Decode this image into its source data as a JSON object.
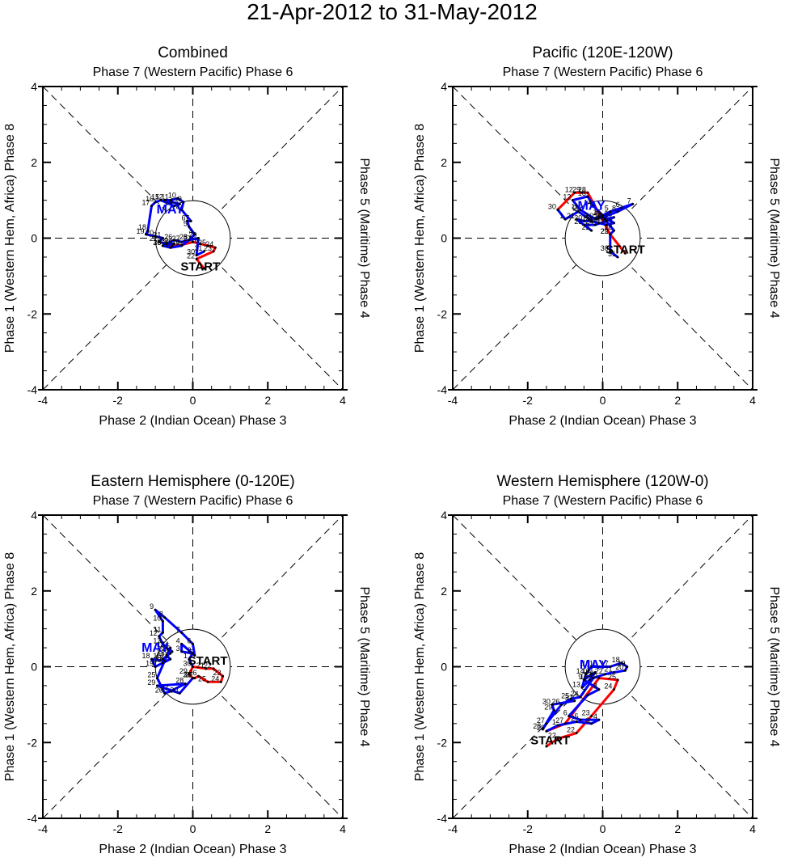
{
  "page_title": "21-Apr-2012 to 31-May-2012",
  "chart_data": [
    {
      "type": "line",
      "title": "Combined",
      "top_label": "Phase 7 (Western Pacific) Phase 6",
      "bottom_label": "Phase 2 (Indian Ocean) Phase 3",
      "left_label": "Phase 1 (Western Hem, Africa) Phase 8",
      "right_label": "Phase 5 (Maritime) Phase 4",
      "xlim": [
        -4,
        4
      ],
      "ylim": [
        -4,
        4
      ],
      "xticks": [
        "-4",
        "-2",
        "0",
        "2",
        "4"
      ],
      "yticks": [
        "-4",
        "-2",
        "0",
        "2",
        "4"
      ],
      "unit_circle_radius": 1,
      "start_label": "START",
      "start_pos": [
        0.2,
        -0.85
      ],
      "month_label": "MAY",
      "month_label_pos": [
        -0.6,
        0.65
      ],
      "series": [
        {
          "name": "April",
          "color": "#ff0000",
          "points": [
            [
              0.3,
              -0.8,
              ""
            ],
            [
              0.1,
              -0.55,
              "22"
            ],
            [
              0.55,
              -0.35,
              "23"
            ],
            [
              0.6,
              -0.25,
              "24"
            ],
            [
              0.4,
              -0.2,
              "25"
            ],
            [
              0.2,
              -0.15,
              "26"
            ],
            [
              0.0,
              -0.1,
              "27"
            ],
            [
              -0.3,
              -0.18,
              "28"
            ],
            [
              -0.55,
              -0.2,
              "29"
            ],
            [
              -0.8,
              -0.2,
              "30"
            ]
          ]
        },
        {
          "name": "May",
          "color": "#0000ff",
          "points": [
            [
              -0.8,
              -0.2,
              ""
            ],
            [
              -0.6,
              -0.25,
              "1"
            ],
            [
              -0.3,
              -0.2,
              "2"
            ],
            [
              -0.1,
              -0.05,
              "3"
            ],
            [
              0.05,
              0.1,
              "4"
            ],
            [
              -0.1,
              0.3,
              "5"
            ],
            [
              -0.15,
              0.45,
              "6"
            ],
            [
              -0.05,
              0.45,
              "7"
            ],
            [
              -0.3,
              0.75,
              "8"
            ],
            [
              -0.25,
              0.95,
              "9"
            ],
            [
              -0.4,
              1.05,
              "10"
            ],
            [
              -0.6,
              1.0,
              "11"
            ],
            [
              -0.75,
              1.0,
              "12"
            ],
            [
              -0.35,
              0.9,
              "13"
            ],
            [
              -0.5,
              0.85,
              "14"
            ],
            [
              -0.85,
              1.0,
              "15"
            ],
            [
              -1.0,
              0.95,
              "16"
            ],
            [
              -1.1,
              0.85,
              "17"
            ],
            [
              -1.2,
              0.2,
              "18"
            ],
            [
              -1.25,
              0.1,
              "19"
            ],
            [
              -1.0,
              0.05,
              "20"
            ],
            [
              -0.8,
              0.0,
              "21"
            ],
            [
              -0.9,
              -0.1,
              "22"
            ],
            [
              -0.7,
              -0.15,
              "23"
            ],
            [
              -0.5,
              -0.15,
              "24"
            ],
            [
              -0.8,
              -0.2,
              "25"
            ],
            [
              -0.5,
              -0.05,
              "26"
            ],
            [
              -0.3,
              -0.1,
              "27"
            ],
            [
              -0.1,
              -0.05,
              "28"
            ],
            [
              0.15,
              0.0,
              "29"
            ],
            [
              0.1,
              -0.45,
              "30"
            ],
            [
              0.3,
              -0.35,
              "31"
            ]
          ]
        }
      ]
    },
    {
      "type": "line",
      "title": "Pacific (120E-120W)",
      "top_label": "Phase 7 (Western Pacific) Phase 6",
      "bottom_label": "Phase 2 (Indian Ocean) Phase 3",
      "left_label": "Phase 1 (Western Hem, Africa) Phase 8",
      "right_label": "Phase 5 (Maritime) Phase 4",
      "xlim": [
        -4,
        4
      ],
      "ylim": [
        -4,
        4
      ],
      "xticks": [
        "-4",
        "-2",
        "0",
        "2",
        "4"
      ],
      "yticks": [
        "-4",
        "-2",
        "0",
        "2",
        "4"
      ],
      "unit_circle_radius": 1,
      "start_label": "START",
      "start_pos": [
        0.6,
        -0.4
      ],
      "month_label": "MAY",
      "month_label_pos": [
        -0.3,
        0.75
      ],
      "series": [
        {
          "name": "April",
          "color": "#ff0000",
          "points": [
            [
              0.6,
              -0.4,
              ""
            ],
            [
              0.2,
              0.1,
              "22"
            ],
            [
              -0.4,
              1.2,
              "28"
            ],
            [
              -0.55,
              1.2,
              "29"
            ],
            [
              -0.75,
              1.2,
              "12"
            ],
            [
              -1.2,
              0.75,
              "30"
            ]
          ]
        },
        {
          "name": "May",
          "color": "#0000ff",
          "points": [
            [
              -1.2,
              0.75,
              ""
            ],
            [
              -1.0,
              0.5,
              "1"
            ],
            [
              -0.65,
              0.7,
              "2"
            ],
            [
              -0.35,
              0.5,
              "3"
            ],
            [
              -0.1,
              0.55,
              "4"
            ],
            [
              0.2,
              0.7,
              "5"
            ],
            [
              0.5,
              0.8,
              "6"
            ],
            [
              0.8,
              0.9,
              "7"
            ],
            [
              0.4,
              0.7,
              "8"
            ],
            [
              0.0,
              0.55,
              "9"
            ],
            [
              -0.2,
              0.5,
              "10"
            ],
            [
              -0.6,
              0.75,
              "11"
            ],
            [
              -0.8,
              1.0,
              "12"
            ],
            [
              -0.4,
              1.1,
              "13"
            ],
            [
              -0.25,
              0.85,
              "14"
            ],
            [
              0.0,
              0.6,
              "15"
            ],
            [
              0.3,
              0.4,
              "16"
            ],
            [
              0.1,
              0.35,
              "17"
            ],
            [
              -0.1,
              0.4,
              "18"
            ],
            [
              -0.3,
              0.45,
              "19"
            ],
            [
              -0.5,
              0.45,
              "20"
            ],
            [
              -0.7,
              0.5,
              "21"
            ],
            [
              -0.3,
              0.2,
              "22"
            ],
            [
              -0.5,
              0.35,
              "23"
            ],
            [
              -0.2,
              0.35,
              "24"
            ],
            [
              0.1,
              0.45,
              "25"
            ],
            [
              0.3,
              0.55,
              "26"
            ],
            [
              0.05,
              0.5,
              "27"
            ],
            [
              0.3,
              0.2,
              "28"
            ],
            [
              0.2,
              0.1,
              "29"
            ],
            [
              0.2,
              -0.35,
              "30"
            ],
            [
              0.4,
              -0.5,
              "31"
            ]
          ]
        }
      ]
    },
    {
      "type": "line",
      "title": "Eastern Hemisphere (0-120E)",
      "top_label": "Phase 7 (Western Pacific) Phase 6",
      "bottom_label": "Phase 2 (Indian Ocean) Phase 3",
      "left_label": "Phase 1 (Western Hem, Africa) Phase 8",
      "right_label": "Phase 5 (Maritime) Phase 4",
      "xlim": [
        -4,
        4
      ],
      "ylim": [
        -4,
        4
      ],
      "xticks": [
        "-4",
        "-2",
        "0",
        "2",
        "4"
      ],
      "yticks": [
        "-4",
        "-2",
        "0",
        "2",
        "4"
      ],
      "unit_circle_radius": 1,
      "start_label": "START",
      "start_pos": [
        0.4,
        0.05
      ],
      "month_label": "MAY",
      "month_label_pos": [
        -1.0,
        0.4
      ],
      "series": [
        {
          "name": "April",
          "color": "#ff0000",
          "points": [
            [
              0.0,
              0.0,
              ""
            ],
            [
              0.35,
              -0.05,
              "21"
            ],
            [
              0.55,
              -0.05,
              "22"
            ],
            [
              0.8,
              -0.25,
              "23"
            ],
            [
              0.75,
              -0.4,
              "24"
            ],
            [
              0.4,
              -0.4,
              "25"
            ],
            [
              0.15,
              -0.25,
              "26"
            ],
            [
              0.05,
              -0.3,
              "27"
            ],
            [
              0.0,
              -0.3,
              "28"
            ],
            [
              -0.1,
              -0.2,
              "29"
            ],
            [
              0.0,
              0.0,
              "30"
            ]
          ]
        },
        {
          "name": "May",
          "color": "#0000ff",
          "points": [
            [
              0.0,
              0.0,
              ""
            ],
            [
              -0.1,
              0.2,
              "1"
            ],
            [
              0.0,
              0.35,
              "2"
            ],
            [
              -0.3,
              0.4,
              "3"
            ],
            [
              -0.3,
              0.6,
              "4"
            ],
            [
              0.05,
              0.3,
              "5"
            ],
            [
              0.0,
              0.6,
              "6"
            ],
            [
              -0.3,
              0.9,
              "7"
            ],
            [
              -0.75,
              1.3,
              "8"
            ],
            [
              -1.0,
              1.5,
              "9"
            ],
            [
              -0.8,
              1.2,
              "10"
            ],
            [
              -0.8,
              0.9,
              "11"
            ],
            [
              -0.9,
              0.8,
              "12"
            ],
            [
              -0.8,
              0.6,
              "13"
            ],
            [
              -0.7,
              0.5,
              "14"
            ],
            [
              -0.55,
              0.4,
              "15"
            ],
            [
              -0.8,
              0.2,
              "16"
            ],
            [
              -0.75,
              0.15,
              "17"
            ],
            [
              -1.1,
              0.2,
              "18"
            ],
            [
              -1.0,
              0.0,
              "19"
            ],
            [
              -0.8,
              0.1,
              "20"
            ],
            [
              -0.6,
              0.2,
              "21"
            ],
            [
              -0.7,
              0.3,
              "22"
            ],
            [
              -0.6,
              0.35,
              "23"
            ],
            [
              -0.6,
              0.5,
              "24"
            ],
            [
              -0.95,
              -0.3,
              "25"
            ],
            [
              -0.75,
              -0.7,
              "26"
            ],
            [
              -0.6,
              -0.65,
              "27"
            ],
            [
              -0.2,
              -0.45,
              "28"
            ],
            [
              -0.95,
              -0.5,
              "29"
            ],
            [
              -0.35,
              -0.7,
              "30"
            ],
            [
              0.0,
              -0.3,
              "31"
            ]
          ]
        }
      ]
    },
    {
      "type": "line",
      "title": "Western Hemisphere (120W-0)",
      "top_label": "Phase 7 (Western Pacific) Phase 6",
      "bottom_label": "Phase 2 (Indian Ocean) Phase 3",
      "left_label": "Phase 1 (Western Hem, Africa) Phase 8",
      "right_label": "Phase 5 (Maritime) Phase 4",
      "xlim": [
        -4,
        4
      ],
      "ylim": [
        -4,
        4
      ],
      "xticks": [
        "-4",
        "-2",
        "0",
        "2",
        "4"
      ],
      "yticks": [
        "-4",
        "-2",
        "0",
        "2",
        "4"
      ],
      "unit_circle_radius": 1,
      "start_label": "START",
      "start_pos": [
        -1.4,
        -2.05
      ],
      "month_label": "MAY",
      "month_label_pos": [
        -0.25,
        -0.05
      ],
      "series": [
        {
          "name": "April",
          "color": "#ff0000",
          "points": [
            [
              -1.5,
              -2.1,
              ""
            ],
            [
              -1.2,
              -1.9,
              "22"
            ],
            [
              -0.7,
              -1.75,
              "22"
            ],
            [
              -0.3,
              -1.3,
              "23"
            ],
            [
              0.3,
              -0.6,
              "24"
            ],
            [
              0.4,
              -0.35,
              "25"
            ],
            [
              -0.1,
              -0.3,
              "26"
            ],
            [
              -1.0,
              -1.5,
              "27"
            ],
            [
              -1.5,
              -1.7,
              "28"
            ]
          ]
        },
        {
          "name": "May",
          "color": "#0000ff",
          "points": [
            [
              -1.5,
              -1.7,
              ""
            ],
            [
              -1.2,
              -1.55,
              "1"
            ],
            [
              -0.7,
              -1.45,
              "2"
            ],
            [
              -0.3,
              -1.5,
              "3"
            ],
            [
              -0.1,
              -1.4,
              "4"
            ],
            [
              -0.6,
              -1.4,
              "5"
            ],
            [
              -0.9,
              -1.3,
              "6"
            ],
            [
              -0.4,
              -0.75,
              "7"
            ],
            [
              -0.1,
              -0.6,
              "8"
            ],
            [
              -0.5,
              -0.35,
              "9"
            ],
            [
              -0.3,
              -0.2,
              "10"
            ],
            [
              -0.2,
              -0.15,
              "11"
            ],
            [
              -0.35,
              -0.35,
              "12"
            ],
            [
              -0.55,
              -0.55,
              "13"
            ],
            [
              -0.45,
              -0.2,
              "14"
            ],
            [
              -0.3,
              0.0,
              "15"
            ],
            [
              -0.1,
              0.0,
              "16"
            ],
            [
              0.2,
              0.0,
              "17"
            ],
            [
              0.5,
              0.1,
              "18"
            ],
            [
              0.65,
              0.0,
              "19"
            ],
            [
              0.6,
              -0.1,
              "20"
            ],
            [
              0.3,
              -0.15,
              "21"
            ],
            [
              0.05,
              -0.2,
              "22"
            ],
            [
              -0.25,
              -0.3,
              "23"
            ],
            [
              -0.6,
              -0.8,
              "24"
            ],
            [
              -0.85,
              -0.85,
              "25"
            ],
            [
              -1.1,
              -1.0,
              "26"
            ],
            [
              -1.5,
              -1.5,
              "27"
            ],
            [
              -1.6,
              -1.65,
              "28"
            ],
            [
              -1.3,
              -1.15,
              "29"
            ],
            [
              -1.35,
              -1.0,
              "30"
            ],
            [
              -0.75,
              -0.9,
              "31"
            ]
          ]
        }
      ]
    }
  ]
}
